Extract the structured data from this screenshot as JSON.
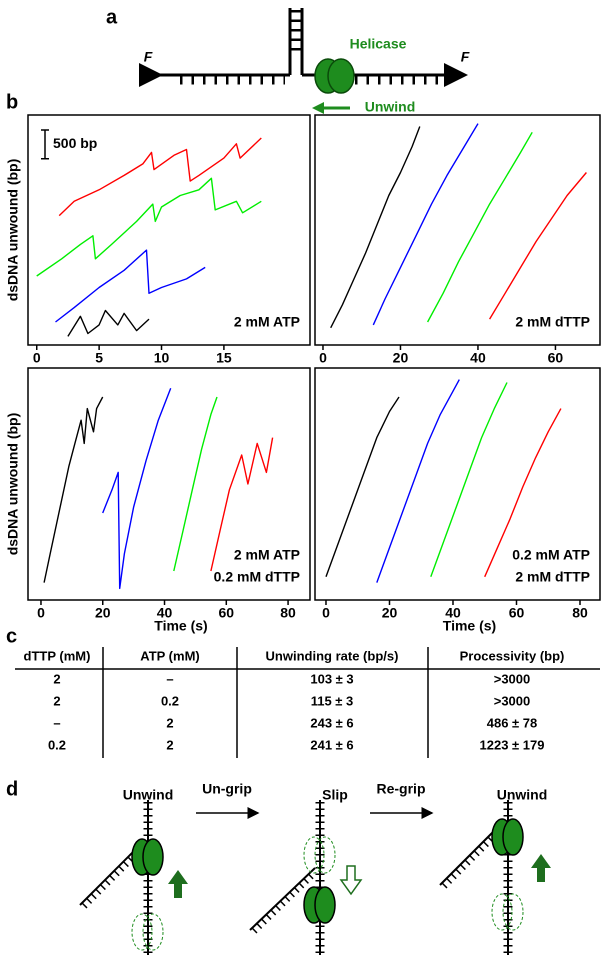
{
  "panel_labels": [
    "a",
    "b",
    "c",
    "d"
  ],
  "diagram_a": {
    "force_left": "F",
    "force_right": "F",
    "helicase": "Helicase",
    "unwind": "Unwind"
  },
  "chart_data": [
    {
      "type": "line",
      "xlim": [
        -0.7,
        21.9
      ],
      "ylim": [
        0,
        4000
      ],
      "xticks": [
        0,
        5,
        10,
        15
      ],
      "ylabel": "dsDNA unwound (bp)",
      "scale_bar": {
        "value": 500,
        "label": "500 bp"
      },
      "annotation": [
        "2 mM ATP"
      ],
      "series": [
        {
          "color": "#ff0000",
          "x": [
            1.8,
            3,
            5,
            7,
            8.5,
            9.2,
            9.4,
            11,
            12,
            12.3,
            13,
            15,
            16,
            16.3,
            18
          ],
          "values": [
            2250,
            2500,
            2700,
            2950,
            3150,
            3350,
            3050,
            3300,
            3400,
            2850,
            2950,
            3250,
            3500,
            3250,
            3600
          ]
        },
        {
          "color": "#00ee00",
          "x": [
            0,
            2,
            3.5,
            4.5,
            4.7,
            6,
            8,
            9.3,
            9.5,
            10,
            11.5,
            13,
            14,
            14.3,
            16,
            16.5,
            18
          ],
          "values": [
            1200,
            1500,
            1750,
            1900,
            1500,
            1750,
            2150,
            2450,
            2150,
            2400,
            2600,
            2700,
            2900,
            2350,
            2500,
            2300,
            2500
          ]
        },
        {
          "color": "#0000ff",
          "x": [
            1.5,
            3,
            5,
            7,
            8.8,
            9,
            10,
            12,
            13.5
          ],
          "values": [
            400,
            650,
            1000,
            1300,
            1650,
            900,
            1000,
            1150,
            1350
          ]
        },
        {
          "color": "#000000",
          "x": [
            2.5,
            3.5,
            4.1,
            5,
            5.5,
            6.5,
            7,
            8,
            9
          ],
          "values": [
            150,
            500,
            200,
            350,
            600,
            350,
            550,
            250,
            450
          ]
        }
      ]
    },
    {
      "type": "line",
      "xlim": [
        -2.06,
        71.5
      ],
      "ylim": [
        0,
        4000
      ],
      "xticks": [
        0,
        20,
        40,
        60
      ],
      "annotation": [
        "2 mM dTTP"
      ],
      "series": [
        {
          "color": "#000000",
          "x": [
            2,
            5,
            8,
            11,
            14,
            17,
            20,
            23,
            25
          ],
          "values": [
            300,
            700,
            1150,
            1600,
            2100,
            2600,
            3000,
            3450,
            3800
          ]
        },
        {
          "color": "#0000ff",
          "x": [
            13,
            16,
            20,
            24,
            28,
            32,
            36,
            40
          ],
          "values": [
            350,
            800,
            1350,
            1900,
            2450,
            2950,
            3400,
            3850
          ]
        },
        {
          "color": "#00ee00",
          "x": [
            27,
            31,
            35,
            39,
            43,
            47,
            51,
            54
          ],
          "values": [
            400,
            900,
            1450,
            1950,
            2450,
            2900,
            3350,
            3700
          ]
        },
        {
          "color": "#ff0000",
          "x": [
            43,
            47,
            51,
            55,
            59,
            63,
            68
          ],
          "values": [
            450,
            900,
            1350,
            1800,
            2200,
            2600,
            3000
          ]
        }
      ]
    },
    {
      "type": "line",
      "xlim": [
        -4.2,
        87.1
      ],
      "ylim": [
        0,
        4000
      ],
      "xticks": [
        0,
        20,
        40,
        60,
        80
      ],
      "ylabel": "dsDNA unwound (bp)",
      "xlabel": "Time (s)",
      "annotation": [
        "2 mM ATP",
        "0.2 mM dTTP"
      ],
      "series": [
        {
          "color": "#000000",
          "x": [
            1,
            3,
            5,
            7,
            9,
            11,
            13,
            14,
            15,
            17,
            18,
            20
          ],
          "values": [
            300,
            800,
            1300,
            1800,
            2300,
            2700,
            3100,
            2700,
            3300,
            2900,
            3300,
            3500
          ]
        },
        {
          "color": "#0000ff",
          "x": [
            20,
            23,
            25,
            25.5,
            27,
            30,
            34,
            38,
            42
          ],
          "values": [
            1500,
            1900,
            2200,
            200,
            800,
            1600,
            2400,
            3100,
            3650
          ]
        },
        {
          "color": "#00ee00",
          "x": [
            43,
            46,
            49,
            52,
            55,
            57
          ],
          "values": [
            500,
            1200,
            1900,
            2600,
            3200,
            3500
          ]
        },
        {
          "color": "#ff0000",
          "x": [
            55,
            58,
            61,
            65,
            67,
            70,
            73,
            75
          ],
          "values": [
            500,
            1200,
            1900,
            2500,
            2000,
            2700,
            2200,
            2800
          ]
        }
      ]
    },
    {
      "type": "line",
      "xlim": [
        -3.46,
        86.3
      ],
      "ylim": [
        0,
        4000
      ],
      "xticks": [
        0,
        20,
        40,
        60,
        80
      ],
      "xlabel": "Time (s)",
      "annotation": [
        "0.2 mM ATP",
        "2 mM dTTP"
      ],
      "series": [
        {
          "color": "#000000",
          "x": [
            0,
            4,
            8,
            12,
            16,
            20,
            23
          ],
          "values": [
            400,
            1000,
            1600,
            2200,
            2800,
            3250,
            3500
          ]
        },
        {
          "color": "#0000ff",
          "x": [
            16,
            20,
            24,
            28,
            32,
            36,
            40,
            42
          ],
          "values": [
            300,
            900,
            1500,
            2100,
            2700,
            3200,
            3600,
            3800
          ]
        },
        {
          "color": "#00ee00",
          "x": [
            33,
            37,
            41,
            45,
            49,
            53,
            57
          ],
          "values": [
            400,
            1000,
            1600,
            2200,
            2800,
            3300,
            3750
          ]
        },
        {
          "color": "#ff0000",
          "x": [
            50,
            54,
            58,
            62,
            66,
            70,
            74
          ],
          "values": [
            400,
            900,
            1400,
            1950,
            2450,
            2900,
            3300
          ]
        }
      ]
    }
  ],
  "table": {
    "header": [
      "dTTP (mM)",
      "ATP (mM)",
      "Unwinding rate (bp/s)",
      "Processivity (bp)"
    ],
    "rows": [
      [
        "2",
        "–",
        "103 ± 3",
        ">3000"
      ],
      [
        "2",
        "0.2",
        "115 ± 3",
        ">3000"
      ],
      [
        "–",
        "2",
        "243 ± 6",
        "486 ± 78"
      ],
      [
        "0.2",
        "2",
        "241 ± 6",
        "1223 ± 179"
      ]
    ]
  },
  "diagram_d": {
    "states": [
      "Unwind",
      "Slip",
      "Unwind"
    ],
    "transitions": [
      "Un-grip",
      "Re-grip"
    ]
  }
}
